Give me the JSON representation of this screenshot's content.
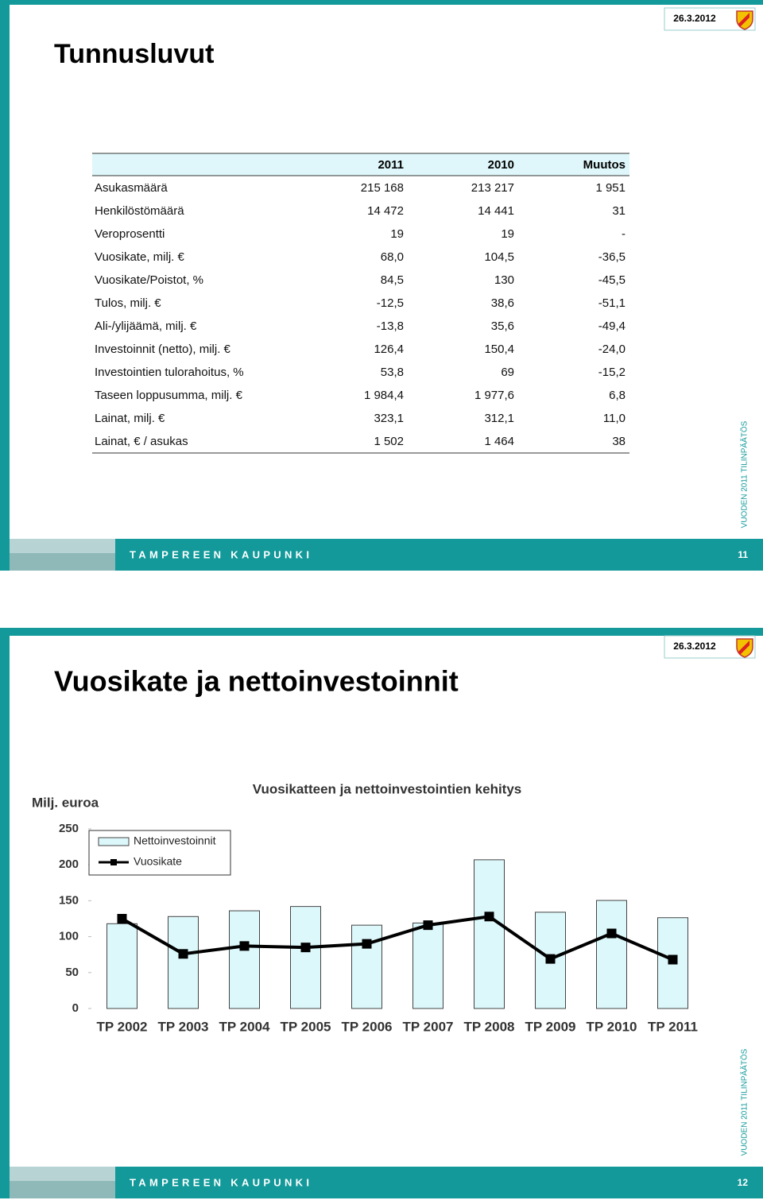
{
  "slides": [
    {
      "date": "26.3.2012",
      "title": "Tunnusluvut",
      "table": {
        "header": [
          "2011",
          "2010",
          "Muutos"
        ],
        "rows": [
          [
            "Asukasmäärä",
            "215 168",
            "213 217",
            "1 951"
          ],
          [
            "Henkilöstömäärä",
            "14 472",
            "14 441",
            "31"
          ],
          [
            "Veroprosentti",
            "19",
            "19",
            "-"
          ],
          [
            "Vuosikate, milj. €",
            "68,0",
            "104,5",
            "-36,5"
          ],
          [
            "Vuosikate/Poistot, %",
            "84,5",
            "130",
            "-45,5"
          ],
          [
            "Tulos, milj. €",
            "-12,5",
            "38,6",
            "-51,1"
          ],
          [
            "Ali-/ylijäämä, milj. €",
            "-13,8",
            "35,6",
            "-49,4"
          ],
          [
            "Investoinnit (netto), milj. €",
            "126,4",
            "150,4",
            "-24,0"
          ],
          [
            "Investointien tulorahoitus, %",
            "53,8",
            "69",
            "-15,2"
          ],
          [
            "Taseen loppusumma, milj. €",
            "1 984,4",
            "1 977,6",
            "6,8"
          ],
          [
            "Lainat, milj. €",
            "323,1",
            "312,1",
            "11,0"
          ],
          [
            "Lainat, € / asukas",
            "1 502",
            "1 464",
            "38"
          ]
        ]
      },
      "side_text": "VUODEN 2011 TILINPÄÄTÖS",
      "footer": "TAMPEREEN KAUPUNKI",
      "page": "11"
    },
    {
      "date": "26.3.2012",
      "title": "Vuosikate ja nettoinvestoinnit",
      "side_text": "VUODEN 2011 TILINPÄÄTÖS",
      "footer": "TAMPEREEN KAUPUNKI",
      "page": "12"
    }
  ],
  "chart_data": {
    "type": "bar",
    "title": "Vuosikatteen ja nettoinvestointien kehitys",
    "y_axis_label": "Milj. euroa",
    "categories": [
      "TP 2002",
      "TP 2003",
      "TP 2004",
      "TP 2005",
      "TP 2006",
      "TP 2007",
      "TP 2008",
      "TP 2009",
      "TP 2010",
      "TP 2011"
    ],
    "series": [
      {
        "name": "Nettoinvestoinnit",
        "type": "bar",
        "color": "#ddf8fb",
        "values": [
          118,
          128,
          136,
          142,
          116,
          119,
          207,
          134,
          150.4,
          126.4
        ]
      },
      {
        "name": "Vuosikate",
        "type": "line",
        "color": "#000000",
        "values": [
          125,
          76,
          87,
          85,
          90,
          116,
          128,
          69,
          104.5,
          68
        ]
      }
    ],
    "ylim": [
      0,
      250
    ],
    "yticks": [
      0,
      50,
      100,
      150,
      200,
      250
    ],
    "legend": "upper left"
  }
}
